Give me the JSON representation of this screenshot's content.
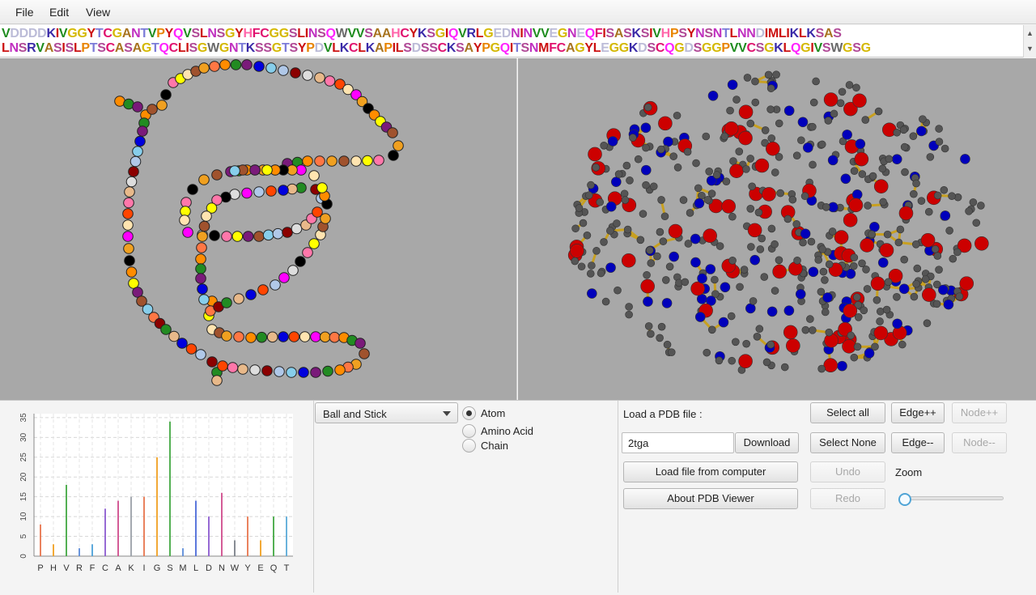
{
  "menu": {
    "file": "File",
    "edit": "Edit",
    "view": "View"
  },
  "sequence": {
    "line1": "VDDDDKIVGGYTCGANTVPYQVSLNSGYHFCGGSLINSQWVVSAAHCYKSGIQVRLGEDNINVVEGNEQFISASKSIVHPSYNSNTLNNDIMLIKLKSAS",
    "line2": "LNSRVASISLPTSCASAGTQCLISGWGNTKSSGTSYPDVLKCLKAPILSDSSCKSAYPGQITSNMFCAGYLEGGKDSCQGDSGGPVVCSGKLQGIVSWGSG",
    "colors": {
      "V": "#1e8c1e",
      "I": "#cc1111",
      "L": "#cc1111",
      "M": "#cc1111",
      "F": "#e0116e",
      "W": "#6a6a6a",
      "Y": "#cc1111",
      "C": "#e0116e",
      "A": "#a87420",
      "G": "#d4b800",
      "P": "#e88400",
      "S": "#b04896",
      "T": "#7c7cd8",
      "N": "#c030c0",
      "Q": "#ff22ff",
      "D": "#bcbcd8",
      "E": "#bcbcd8",
      "K": "#3a2aa8",
      "R": "#3a2aa8",
      "H": "#ff66aa"
    }
  },
  "controls": {
    "style_select": "Ball and Stick",
    "radio_atom": "Atom",
    "radio_amino": "Amino Acid",
    "radio_chain": "Chain",
    "selected_radio": "Atom",
    "load_label": "Load a PDB file :",
    "pdb_value": "2tga",
    "download": "Download",
    "load_computer": "Load file from computer",
    "about": "About PDB Viewer",
    "select_all": "Select all",
    "select_none": "Select None",
    "edge_plus": "Edge++",
    "edge_minus": "Edge--",
    "node_plus": "Node++",
    "node_minus": "Node--",
    "undo": "Undo",
    "redo": "Redo",
    "zoom": "Zoom",
    "zoom_value": 0
  },
  "chart_data": {
    "type": "bar",
    "categories": [
      "P",
      "H",
      "V",
      "R",
      "F",
      "C",
      "A",
      "K",
      "I",
      "G",
      "S",
      "M",
      "L",
      "D",
      "N",
      "W",
      "Y",
      "E",
      "Q",
      "T"
    ],
    "values": [
      8,
      3,
      18,
      2,
      3,
      12,
      14,
      15,
      15,
      25,
      34,
      2,
      14,
      10,
      16,
      4,
      10,
      4,
      10,
      10
    ],
    "colors": [
      "#e8744c",
      "#f0a020",
      "#42a842",
      "#5a8ad8",
      "#4aa0d8",
      "#8c5ad0",
      "#d04a8c",
      "#9aa0a8",
      "#e8744c",
      "#f0a020",
      "#42a842",
      "#5a8ad8",
      "#4a6ad8",
      "#8c5ad0",
      "#d04a8c",
      "#7a8088",
      "#e8744c",
      "#f0a020",
      "#42a842",
      "#5aaad8"
    ],
    "yticks": [
      0,
      5,
      10,
      15,
      20,
      25,
      30,
      35
    ],
    "ylim": [
      0,
      36
    ],
    "grid": true
  },
  "icons": {
    "combo_arrow": "chevron-down-icon",
    "scroll_up": "caret-up-icon",
    "scroll_down": "caret-down-icon"
  }
}
